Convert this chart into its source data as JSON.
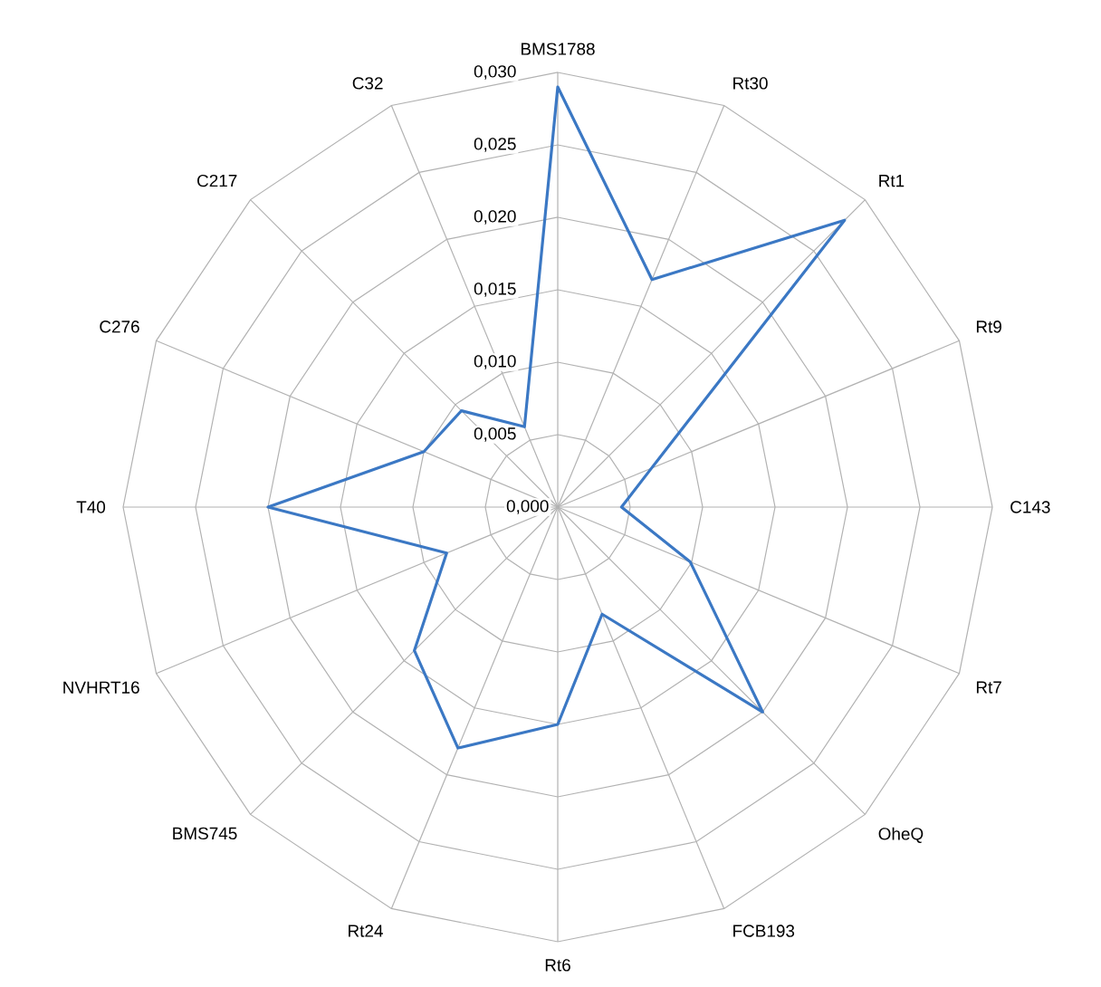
{
  "chart_data": {
    "type": "radar",
    "categories": [
      "BMS1788",
      "Rt30",
      "Rt1",
      "Rt9",
      "C143",
      "Rt7",
      "OheQ",
      "FCB193",
      "Rt6",
      "Rt24",
      "BMS745",
      "NVHRT16",
      "T40",
      "C276",
      "C217",
      "C32"
    ],
    "series": [
      {
        "color": "#3b78c4",
        "values": [
          0.029,
          0.017,
          0.028,
          0.007,
          0.0044,
          0.0099,
          0.02,
          0.008,
          0.015,
          0.018,
          0.014,
          0.0083,
          0.02,
          0.01,
          0.0094,
          0.006
        ]
      }
    ],
    "ylim": [
      0,
      0.03
    ],
    "yticks": [
      {
        "value": 0,
        "label": "0,000"
      },
      {
        "value": 0.005,
        "label": "0,005"
      },
      {
        "value": 0.01,
        "label": "0,010"
      },
      {
        "value": 0.015,
        "label": "0,015"
      },
      {
        "value": 0.02,
        "label": "0,020"
      },
      {
        "value": 0.025,
        "label": "0,025"
      },
      {
        "value": 0.03,
        "label": "0,030"
      }
    ],
    "grid": true
  }
}
